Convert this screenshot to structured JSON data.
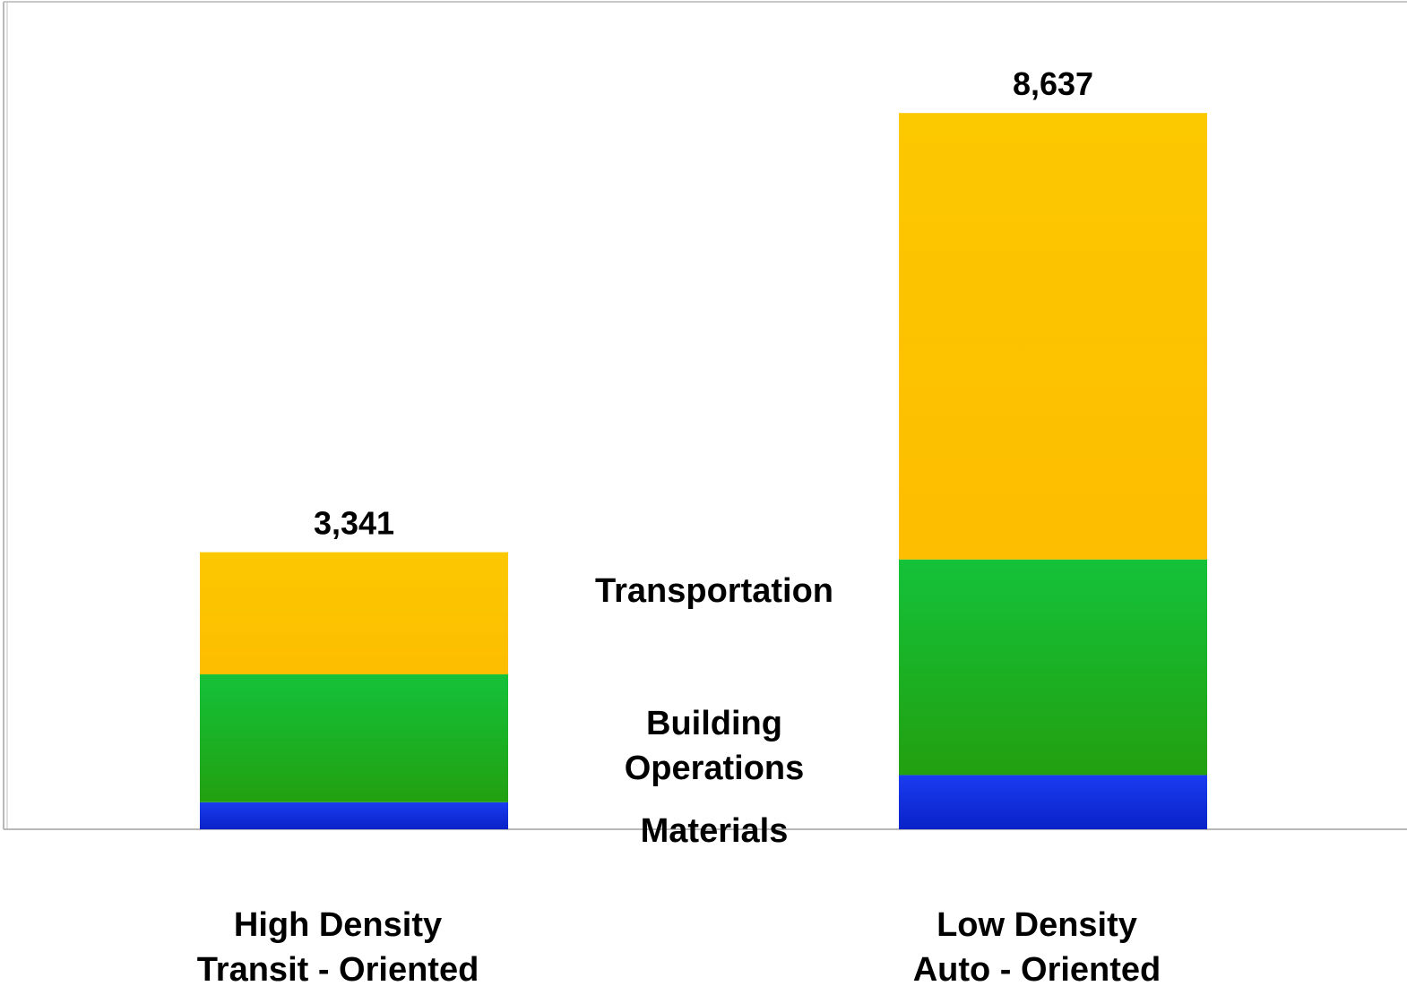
{
  "chart_data": {
    "type": "bar",
    "stacked": true,
    "categories": [
      [
        "High Density",
        "Transit - Oriented"
      ],
      [
        "Low Density",
        "Auto - Oriented"
      ]
    ],
    "series": [
      {
        "name": "Materials",
        "values": [
          326,
          654
        ],
        "color": "#0a2fe0"
      },
      {
        "name": "Building Operations",
        "values": [
          1542,
          2600
        ],
        "color": "#17b52e"
      },
      {
        "name": "Transportation",
        "values": [
          1473,
          5383
        ],
        "color": "#fcbf00"
      }
    ],
    "totals": [
      "3,341",
      "8,637"
    ],
    "total_values": [
      3341,
      8637
    ],
    "series_labels": [
      "Materials",
      [
        "Building",
        "Operations"
      ],
      "Transportation"
    ],
    "ylim": [
      0,
      10000
    ],
    "grid": false,
    "legend": "inline-between-bars",
    "title": "",
    "xlabel": "",
    "ylabel": ""
  }
}
